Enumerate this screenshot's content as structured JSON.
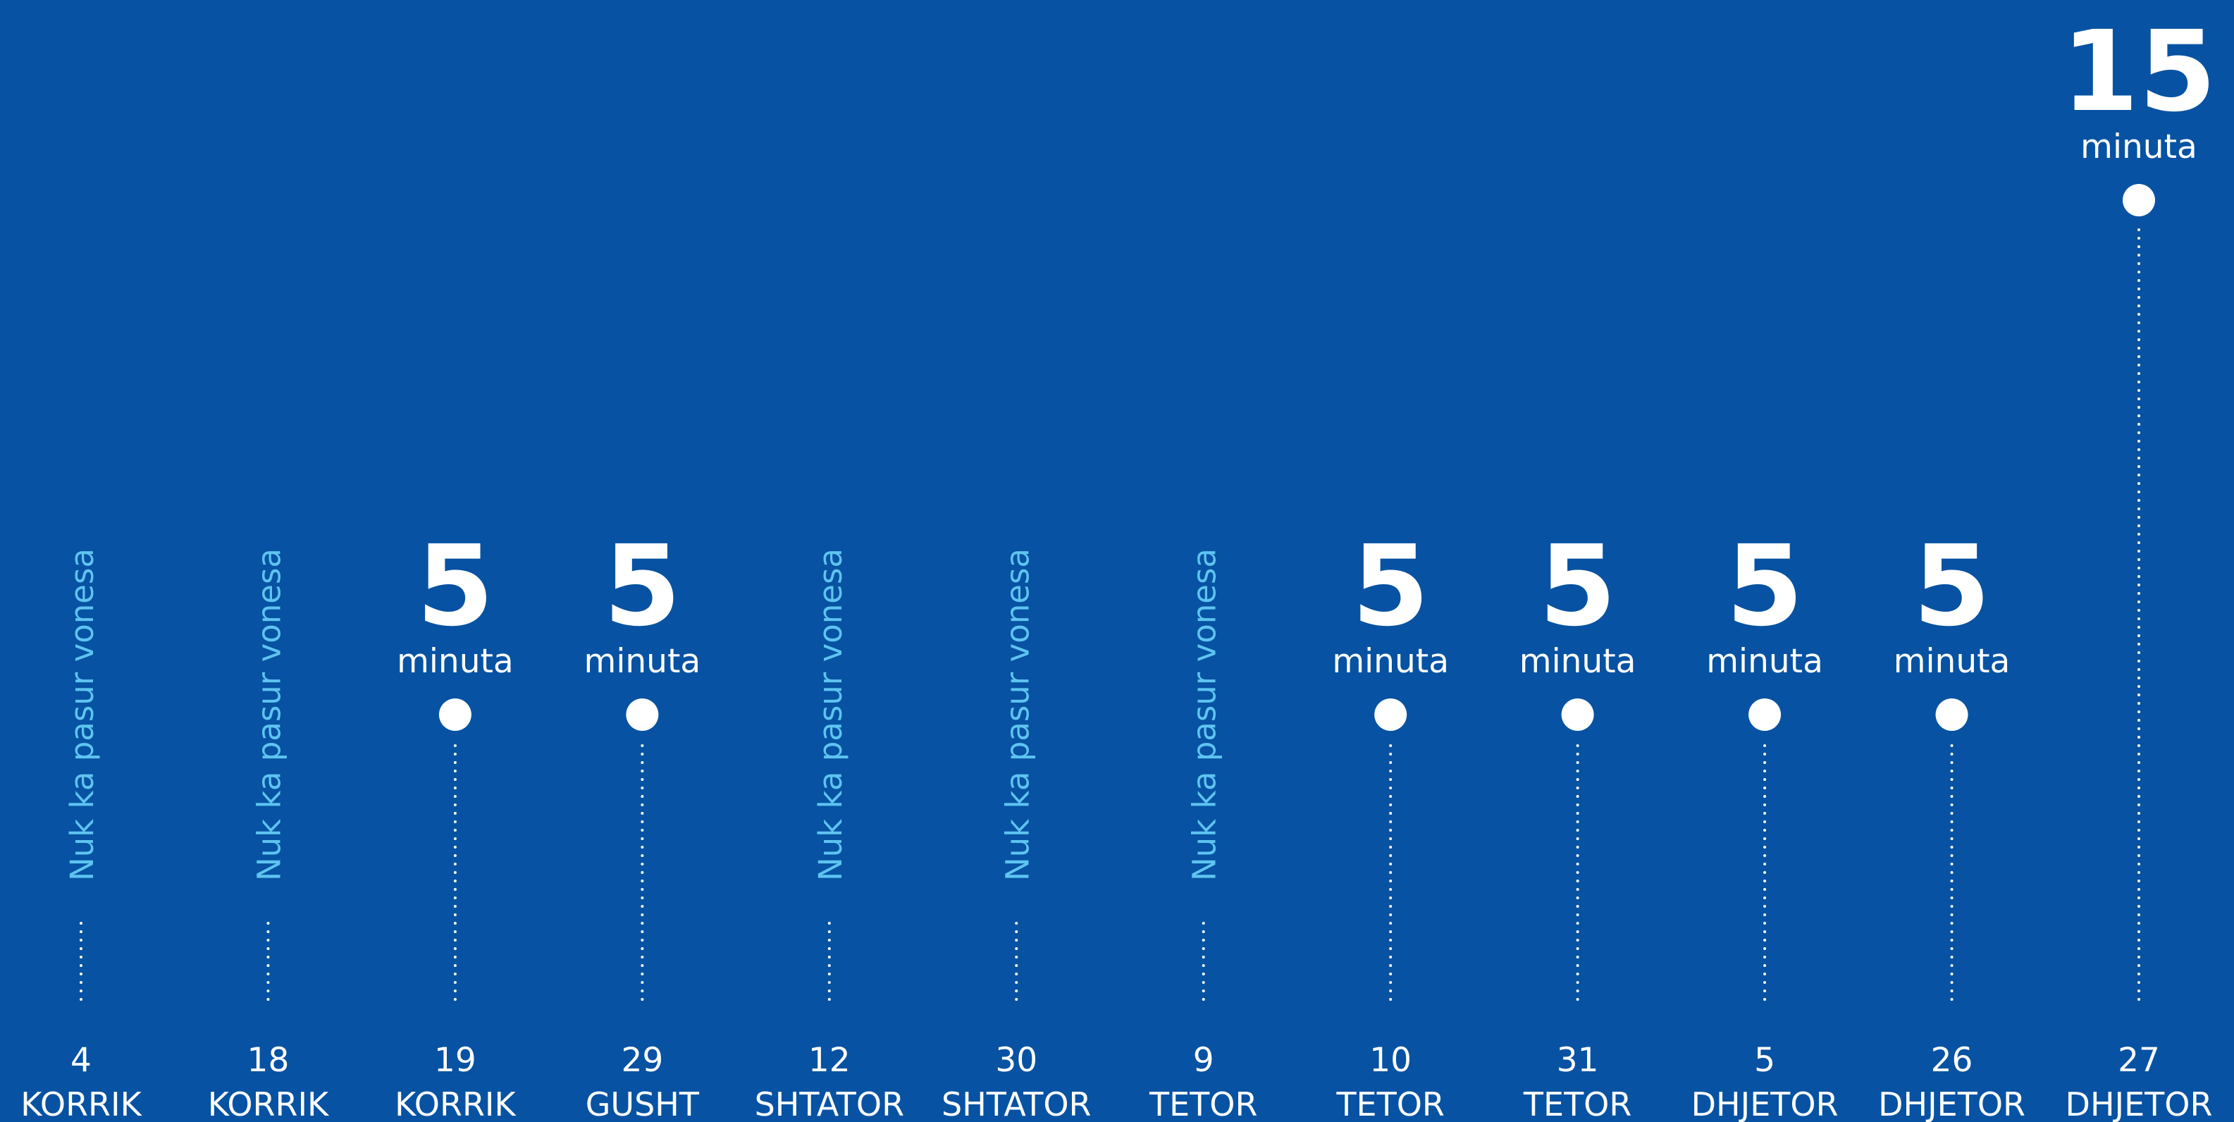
{
  "chart_data": {
    "type": "scatter",
    "colors": {
      "background": "#0752a2",
      "marks": "#ffffff",
      "no_delay_text": "#5ec4f0"
    },
    "grid": false,
    "legend": "none",
    "unit_label": "minuta",
    "no_delay_label": "Nuk ka pasur vonesa",
    "ylim": [
      0,
      15
    ],
    "points": [
      {
        "day": "4",
        "month": "KORRIK",
        "value": null
      },
      {
        "day": "18",
        "month": "KORRIK",
        "value": null
      },
      {
        "day": "19",
        "month": "KORRIK",
        "value": 5
      },
      {
        "day": "29",
        "month": "GUSHT",
        "value": 5
      },
      {
        "day": "12",
        "month": "SHTATOR",
        "value": null
      },
      {
        "day": "30",
        "month": "SHTATOR",
        "value": null
      },
      {
        "day": "9",
        "month": "TETOR",
        "value": null
      },
      {
        "day": "10",
        "month": "TETOR",
        "value": 5
      },
      {
        "day": "31",
        "month": "TETOR",
        "value": 5
      },
      {
        "day": "5",
        "month": "DHJETOR",
        "value": 5
      },
      {
        "day": "26",
        "month": "DHJETOR",
        "value": 5
      },
      {
        "day": "27",
        "month": "DHJETOR",
        "value": 15
      }
    ]
  }
}
